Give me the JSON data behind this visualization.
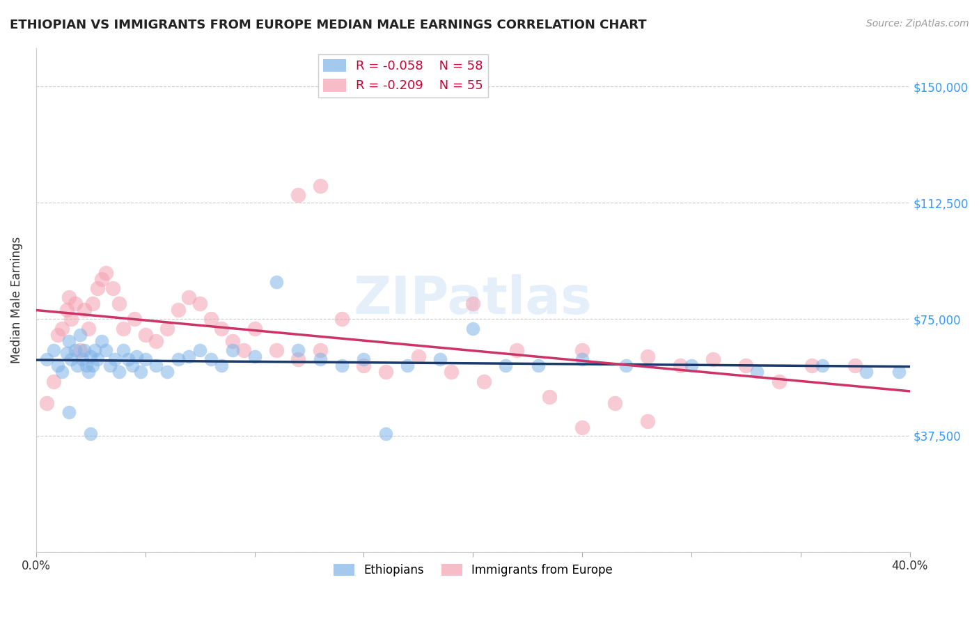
{
  "title": "ETHIOPIAN VS IMMIGRANTS FROM EUROPE MEDIAN MALE EARNINGS CORRELATION CHART",
  "source": "Source: ZipAtlas.com",
  "ylabel": "Median Male Earnings",
  "xlim": [
    0.0,
    0.4
  ],
  "ylim": [
    0,
    162500
  ],
  "legend_blue_r": "-0.058",
  "legend_blue_n": "58",
  "legend_pink_r": "-0.209",
  "legend_pink_n": "55",
  "blue_color": "#7EB3E8",
  "pink_color": "#F4A0B0",
  "blue_line_color": "#1A3A6B",
  "pink_line_color": "#CC3366",
  "watermark": "ZIPatlas",
  "blue_x": [
    0.005,
    0.008,
    0.01,
    0.012,
    0.014,
    0.015,
    0.016,
    0.018,
    0.019,
    0.02,
    0.021,
    0.022,
    0.023,
    0.024,
    0.025,
    0.026,
    0.027,
    0.028,
    0.03,
    0.032,
    0.034,
    0.036,
    0.038,
    0.04,
    0.042,
    0.044,
    0.046,
    0.048,
    0.05,
    0.055,
    0.06,
    0.065,
    0.07,
    0.075,
    0.08,
    0.085,
    0.09,
    0.1,
    0.11,
    0.12,
    0.13,
    0.14,
    0.15,
    0.16,
    0.17,
    0.185,
    0.2,
    0.215,
    0.23,
    0.25,
    0.27,
    0.3,
    0.33,
    0.36,
    0.38,
    0.395,
    0.015,
    0.025
  ],
  "blue_y": [
    62000,
    65000,
    60000,
    58000,
    64000,
    68000,
    62000,
    65000,
    60000,
    70000,
    62000,
    65000,
    60000,
    58000,
    63000,
    60000,
    65000,
    62000,
    68000,
    65000,
    60000,
    62000,
    58000,
    65000,
    62000,
    60000,
    63000,
    58000,
    62000,
    60000,
    58000,
    62000,
    63000,
    65000,
    62000,
    60000,
    65000,
    63000,
    87000,
    65000,
    62000,
    60000,
    62000,
    38000,
    60000,
    62000,
    72000,
    60000,
    60000,
    62000,
    60000,
    60000,
    58000,
    60000,
    58000,
    58000,
    45000,
    38000
  ],
  "pink_x": [
    0.005,
    0.008,
    0.01,
    0.012,
    0.014,
    0.015,
    0.016,
    0.018,
    0.02,
    0.022,
    0.024,
    0.026,
    0.028,
    0.03,
    0.032,
    0.035,
    0.038,
    0.04,
    0.045,
    0.05,
    0.055,
    0.06,
    0.065,
    0.07,
    0.075,
    0.08,
    0.085,
    0.09,
    0.095,
    0.1,
    0.11,
    0.12,
    0.13,
    0.14,
    0.15,
    0.16,
    0.175,
    0.19,
    0.205,
    0.22,
    0.235,
    0.25,
    0.265,
    0.28,
    0.295,
    0.31,
    0.325,
    0.34,
    0.355,
    0.375,
    0.12,
    0.13,
    0.2,
    0.25,
    0.28
  ],
  "pink_y": [
    48000,
    55000,
    70000,
    72000,
    78000,
    82000,
    75000,
    80000,
    65000,
    78000,
    72000,
    80000,
    85000,
    88000,
    90000,
    85000,
    80000,
    72000,
    75000,
    70000,
    68000,
    72000,
    78000,
    82000,
    80000,
    75000,
    72000,
    68000,
    65000,
    72000,
    65000,
    62000,
    65000,
    75000,
    60000,
    58000,
    63000,
    58000,
    55000,
    65000,
    50000,
    65000,
    48000,
    63000,
    60000,
    62000,
    60000,
    55000,
    60000,
    60000,
    115000,
    118000,
    80000,
    40000,
    42000
  ]
}
